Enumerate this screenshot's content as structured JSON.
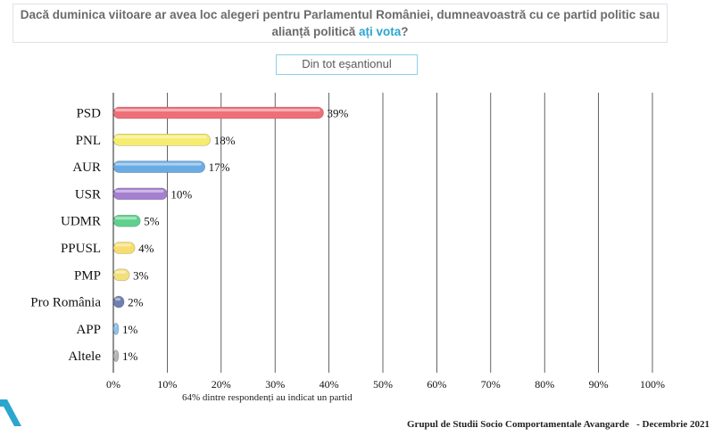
{
  "header": {
    "question_line1": "Dacă duminica viitoare ar avea loc alegeri pentru Parlamentul României, dumneavoastră cu ce partid politic sau",
    "question_line2_prefix": "alianță politică ",
    "question_line2_highlight": "ați vota",
    "question_line2_suffix": "?"
  },
  "subset_label": "Din tot eșantionul",
  "note": "64% dintre respondenți au indicat un partid",
  "footer": {
    "org": "Grupul de Studii Socio Comportamentale Avangarde",
    "separator": "-",
    "date": "Decembrie 2021"
  },
  "colors": {
    "PSD": "#ef6f78",
    "PNL": "#f6ec6e",
    "AUR": "#6aabe3",
    "USR": "#a57fd0",
    "UDMR": "#5fd08e",
    "PPUSL": "#f6dd6e",
    "PMP": "#f3e07c",
    "Pro România": "#6f80b0",
    "APP": "#8cc3ea",
    "Altele": "#b5b5b5",
    "grid": "#222222",
    "logo": "#2aa6cf"
  },
  "chart_data": {
    "type": "bar",
    "orientation": "horizontal",
    "categories": [
      "PSD",
      "PNL",
      "AUR",
      "USR",
      "UDMR",
      "PPUSL",
      "PMP",
      "Pro România",
      "APP",
      "Altele"
    ],
    "values": [
      39,
      18,
      17,
      10,
      5,
      4,
      3,
      2,
      1,
      1
    ],
    "value_labels": [
      "39%",
      "18%",
      "17%",
      "10%",
      "5%",
      "4%",
      "3%",
      "2%",
      "1%",
      "1%"
    ],
    "xlim": [
      0,
      100
    ],
    "xticks": [
      0,
      10,
      20,
      30,
      40,
      50,
      60,
      70,
      80,
      90,
      100
    ],
    "xtick_labels": [
      "0%",
      "10%",
      "20%",
      "30%",
      "40%",
      "50%",
      "60%",
      "70%",
      "80%",
      "90%",
      "100%"
    ],
    "grid": "vertical",
    "title": "Dacă duminica viitoare ar avea loc alegeri pentru Parlamentul României, dumneavoastră cu ce partid politic sau alianță politică ați vota?",
    "xlabel": "",
    "ylabel": ""
  }
}
